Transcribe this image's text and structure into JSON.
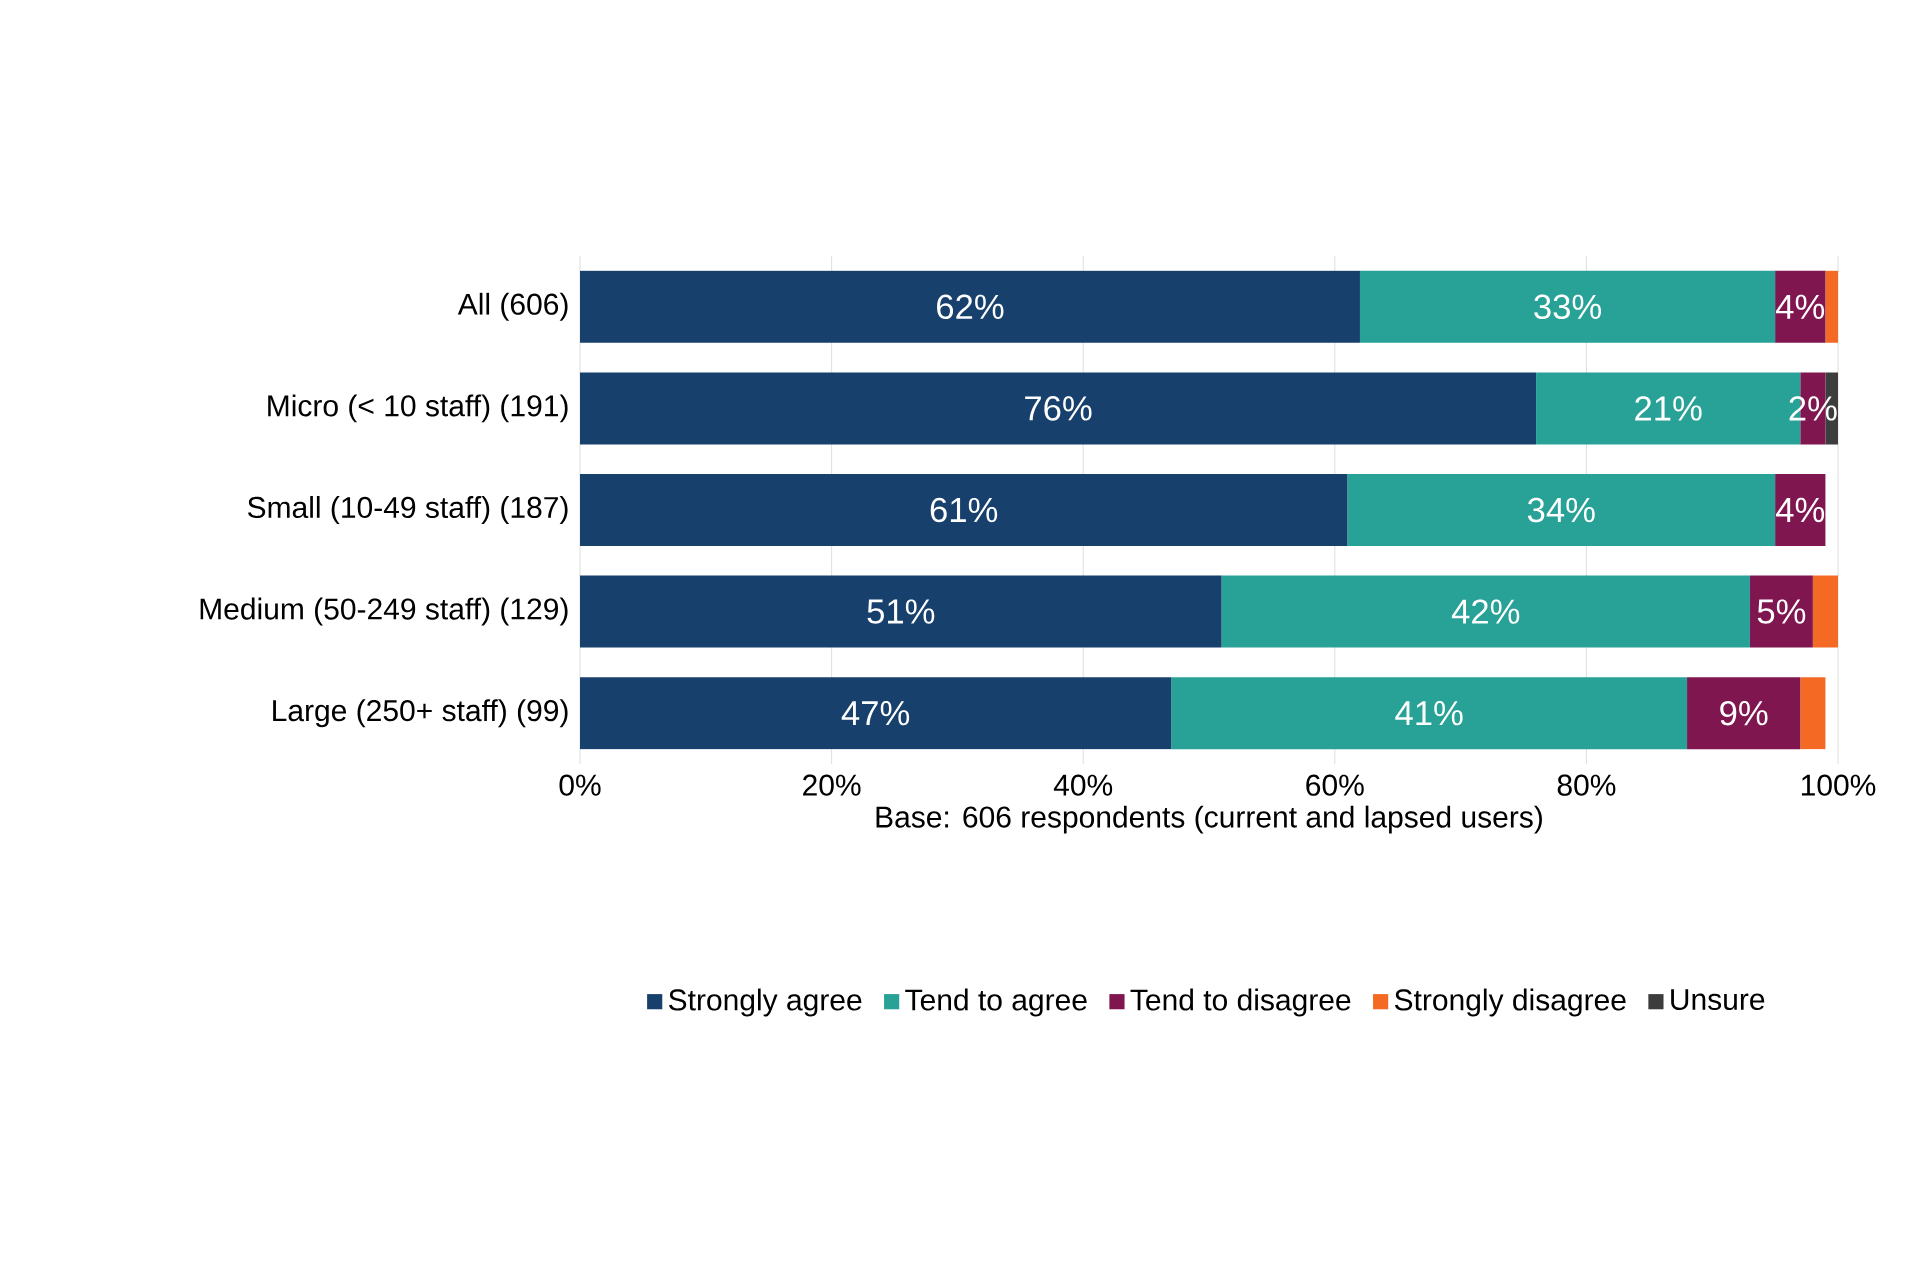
{
  "chart_data": {
    "type": "bar",
    "orientation": "horizontal",
    "stacked": true,
    "categories": [
      "All (606)",
      "Micro (< 10 staff) (191)",
      "Small (10-49 staff) (187)",
      "Medium (50-249 staff) (129)",
      "Large (250+ staff) (99)"
    ],
    "series": [
      {
        "name": "Strongly agree",
        "color": "#17406d",
        "values": [
          62,
          76,
          61,
          51,
          47
        ],
        "value_labels": [
          "62%",
          "76%",
          "61%",
          "51%",
          "47%"
        ]
      },
      {
        "name": "Tend to agree",
        "color": "#28a197",
        "values": [
          33,
          21,
          34,
          42,
          41
        ],
        "value_labels": [
          "33%",
          "21%",
          "34%",
          "42%",
          "41%"
        ]
      },
      {
        "name": "Tend to disagree",
        "color": "#801650",
        "values": [
          4,
          2,
          4,
          5,
          9
        ],
        "value_labels": [
          "4%",
          "2%",
          "4%",
          "5%",
          "9%"
        ]
      },
      {
        "name": "Strongly disagree",
        "color": "#f46a25",
        "values": [
          1,
          0,
          0,
          2,
          2
        ],
        "value_labels": [
          null,
          null,
          null,
          null,
          null
        ]
      },
      {
        "name": "Unsure",
        "color": "#3d3d3d",
        "values": [
          0,
          1,
          0,
          0,
          0
        ],
        "value_labels": [
          null,
          null,
          null,
          null,
          null
        ]
      }
    ],
    "xlim": [
      0,
      100
    ],
    "xticks": [
      {
        "value": 0,
        "label": "0%"
      },
      {
        "value": 20,
        "label": "20%"
      },
      {
        "value": 40,
        "label": "40%"
      },
      {
        "value": 60,
        "label": "60%"
      },
      {
        "value": 80,
        "label": "80%"
      },
      {
        "value": 100,
        "label": "100%"
      }
    ],
    "xlabel": "Base: 606 respondents (current and lapsed users)",
    "grid": "x",
    "legend": "bottom"
  }
}
